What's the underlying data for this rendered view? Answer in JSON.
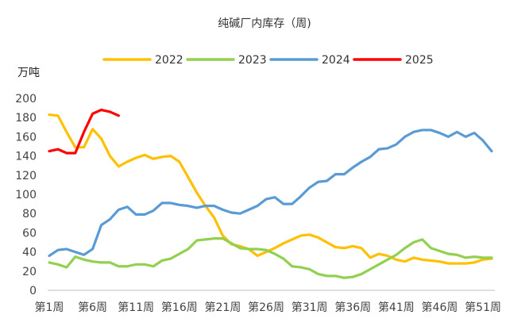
{
  "chart_data": {
    "type": "line",
    "title": "纯碱厂内库存（周)",
    "ylabel": "万吨",
    "xlabel": "",
    "ylim": [
      0,
      200
    ],
    "yticks": [
      0,
      20,
      40,
      60,
      80,
      100,
      120,
      140,
      160,
      180,
      200
    ],
    "grid": false,
    "legend_position": "top",
    "x": [
      "第1周",
      "第2周",
      "第3周",
      "第4周",
      "第5周",
      "第6周",
      "第7周",
      "第8周",
      "第9周",
      "第10周",
      "第11周",
      "第12周",
      "第13周",
      "第14周",
      "第15周",
      "第16周",
      "第17周",
      "第18周",
      "第19周",
      "第20周",
      "第21周",
      "第22周",
      "第23周",
      "第24周",
      "第25周",
      "第26周",
      "第27周",
      "第28周",
      "第29周",
      "第30周",
      "第31周",
      "第32周",
      "第33周",
      "第34周",
      "第35周",
      "第36周",
      "第37周",
      "第38周",
      "第39周",
      "第40周",
      "第41周",
      "第42周",
      "第43周",
      "第44周",
      "第45周",
      "第46周",
      "第47周",
      "第48周",
      "第49周",
      "第50周",
      "第51周",
      "第52周"
    ],
    "xtick_labels": [
      "第1周",
      "第6周",
      "第11周",
      "第16周",
      "第21周",
      "第26周",
      "第31周",
      "第36周",
      "第41周",
      "第46周",
      "第51周"
    ],
    "series": [
      {
        "name": "2022",
        "color": "#FFC000",
        "values": [
          183,
          182,
          165,
          149,
          149,
          168,
          158,
          140,
          129,
          134,
          138,
          141,
          137,
          139,
          140,
          134,
          118,
          102,
          88,
          76,
          57,
          48,
          46,
          43,
          36,
          40,
          44,
          49,
          53,
          57,
          58,
          55,
          50,
          45,
          44,
          46,
          44,
          34,
          38,
          36,
          32,
          30,
          34,
          32,
          31,
          30,
          28,
          28,
          28,
          29,
          32,
          33
        ]
      },
      {
        "name": "2023",
        "color": "#92D050",
        "values": [
          29,
          27,
          24,
          35,
          32,
          30,
          29,
          29,
          25,
          25,
          27,
          27,
          25,
          31,
          33,
          38,
          43,
          52,
          53,
          54,
          54,
          49,
          44,
          43,
          43,
          42,
          38,
          33,
          25,
          24,
          22,
          17,
          15,
          15,
          13,
          14,
          17,
          22,
          27,
          32,
          37,
          44,
          50,
          53,
          44,
          41,
          38,
          37,
          34,
          35,
          34,
          34
        ]
      },
      {
        "name": "2024",
        "color": "#5B9BD5",
        "values": [
          36,
          42,
          43,
          40,
          37,
          43,
          68,
          74,
          84,
          87,
          79,
          79,
          83,
          91,
          91,
          89,
          88,
          86,
          88,
          88,
          84,
          81,
          80,
          84,
          88,
          95,
          97,
          90,
          90,
          98,
          107,
          113,
          114,
          121,
          121,
          128,
          134,
          139,
          147,
          148,
          152,
          160,
          165,
          167,
          167,
          164,
          160,
          165,
          160,
          164,
          156,
          145
        ]
      },
      {
        "name": "2025",
        "color": "#FF0000",
        "values": [
          145,
          147,
          143,
          143,
          165,
          184,
          188,
          186,
          182,
          null,
          null,
          null,
          null,
          null,
          null,
          null,
          null,
          null,
          null,
          null,
          null,
          null,
          null,
          null,
          null,
          null,
          null,
          null,
          null,
          null,
          null,
          null,
          null,
          null,
          null,
          null,
          null,
          null,
          null,
          null,
          null,
          null,
          null,
          null,
          null,
          null,
          null,
          null,
          null,
          null,
          null,
          null
        ]
      }
    ]
  }
}
